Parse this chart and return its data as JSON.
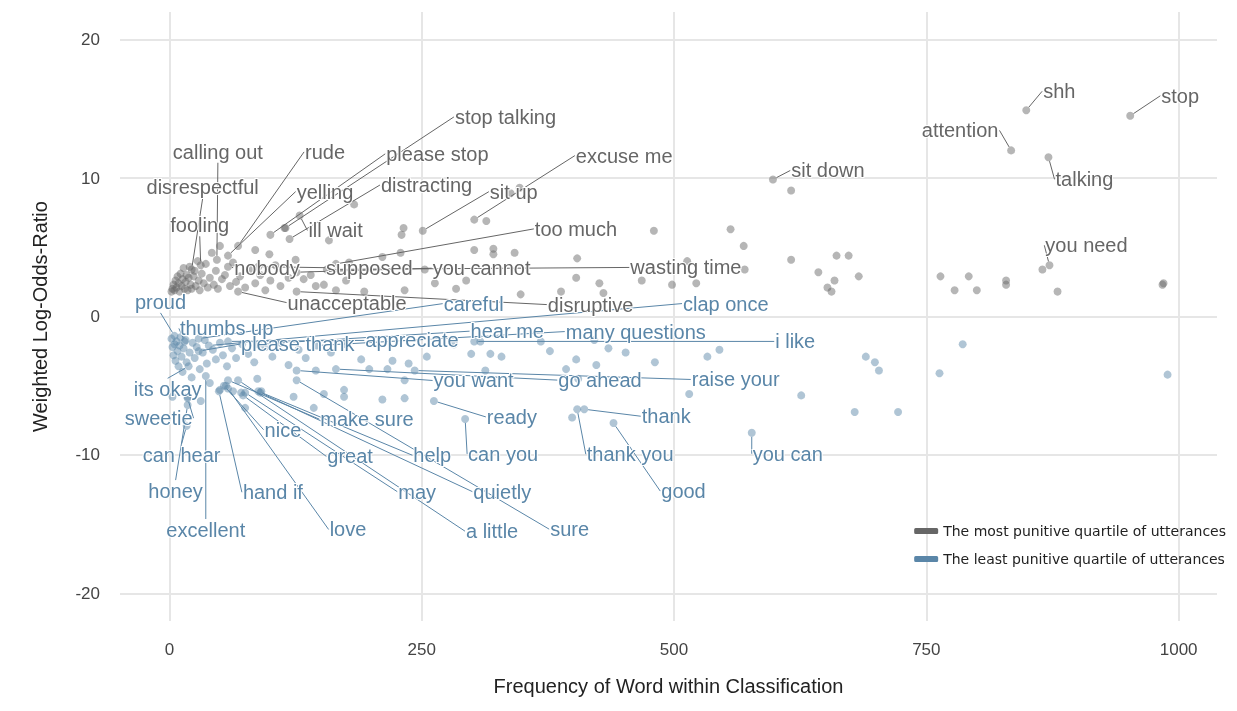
{
  "chart_data": {
    "type": "scatter",
    "xlabel": "Frequency of Word within Classification",
    "ylabel": "Weighted Log-Odds-Ratio",
    "xlim": [
      -49,
      1038
    ],
    "ylim": [
      -22,
      22
    ],
    "xticks": [
      0,
      250,
      500,
      750,
      1000
    ],
    "yticks": [
      -20,
      -10,
      0,
      10,
      20
    ],
    "grid": true,
    "legend": "bottom right",
    "marker": "circle",
    "series": [
      {
        "name": "The most punitive quartile of utterances",
        "color": "#666666",
        "x": [
          952,
          849,
          834,
          871,
          598,
          872,
          47,
          68,
          100,
          115,
          22,
          58,
          119,
          251,
          302,
          31,
          129,
          165,
          58,
          88,
          126,
          156,
          68,
          126,
          616,
          643,
          661,
          673,
          659,
          652,
          656,
          683,
          764,
          778,
          792,
          800,
          829,
          829,
          865,
          880,
          985,
          984,
          616,
          480,
          556,
          569,
          302,
          321,
          342,
          404,
          513,
          570,
          403,
          426,
          468,
          498,
          522,
          388,
          430,
          348,
          294,
          321,
          314,
          338,
          347,
          183,
          232,
          230,
          158,
          114,
          85,
          99,
          229,
          211,
          178,
          133,
          153,
          193,
          233,
          263,
          284,
          253,
          175,
          2,
          3,
          4,
          5,
          6,
          7,
          8,
          9,
          10,
          11,
          12,
          13,
          14,
          15,
          16,
          17,
          18,
          19,
          20,
          21,
          22,
          24,
          25,
          26,
          28,
          29,
          30,
          32,
          34,
          36,
          38,
          40,
          42,
          44,
          46,
          48,
          50,
          52,
          55,
          60,
          63,
          66,
          70,
          75,
          80,
          85,
          90,
          95,
          100,
          105,
          110,
          118,
          125,
          140,
          145,
          165
        ],
        "values": [
          14.5,
          14.9,
          12.0,
          11.5,
          9.9,
          3.7,
          4.1,
          5.1,
          5.9,
          6.4,
          3.4,
          4.4,
          5.6,
          6.2,
          7.0,
          3.7,
          7.3,
          3.8,
          3.6,
          3.6,
          3.2,
          3.4,
          1.8,
          1.8,
          4.1,
          3.2,
          4.4,
          4.4,
          2.6,
          2.1,
          1.8,
          2.9,
          2.9,
          1.9,
          2.9,
          1.9,
          2.6,
          2.3,
          3.4,
          1.8,
          2.4,
          2.3,
          9.1,
          6.2,
          6.3,
          5.1,
          4.8,
          4.9,
          4.6,
          4.2,
          4.0,
          3.4,
          2.8,
          2.4,
          2.6,
          2.3,
          2.4,
          1.8,
          1.7,
          1.6,
          2.6,
          4.5,
          6.9,
          8.9,
          9.3,
          8.1,
          6.4,
          5.9,
          5.5,
          6.4,
          4.8,
          4.5,
          4.6,
          4.3,
          3.9,
          2.7,
          2.3,
          1.8,
          1.9,
          2.4,
          2.0,
          3.4,
          2.6,
          1.8,
          2.0,
          2.3,
          1.9,
          2.6,
          2.1,
          2.9,
          2.4,
          1.8,
          3.1,
          2.2,
          2.7,
          3.5,
          2.0,
          2.5,
          3.0,
          1.9,
          2.8,
          3.6,
          2.3,
          2.0,
          2.9,
          3.3,
          2.2,
          4.0,
          2.6,
          1.9,
          3.1,
          2.4,
          3.8,
          2.1,
          2.8,
          4.6,
          2.3,
          3.3,
          2.0,
          5.1,
          2.7,
          3.0,
          2.2,
          3.9,
          2.5,
          2.9,
          2.1,
          3.4,
          2.4,
          3.0,
          1.9,
          2.6,
          3.7,
          2.2,
          2.8,
          4.1,
          3.0,
          2.2,
          1.9
        ],
        "value_labels": [
          "stop",
          "shh",
          "attention",
          "talking",
          "sit down",
          "you need",
          "calling out",
          "rude",
          "please stop",
          "stop talking",
          "disrespectful",
          "yelling",
          "distracting",
          "sit up",
          "excuse me",
          "fooling",
          "ill wait",
          "too much",
          "nobody",
          "supposed",
          "you cannot",
          "wasting time",
          "unacceptable",
          "disruptive",
          null,
          null,
          null,
          null,
          null,
          null,
          null,
          null,
          null,
          null,
          null,
          null,
          null,
          null,
          null,
          null,
          null,
          null,
          null,
          null,
          null,
          null,
          null,
          null,
          null,
          null,
          null,
          null,
          null,
          null,
          null,
          null,
          null,
          null,
          null,
          null,
          null,
          null,
          null,
          null,
          null,
          null,
          null,
          null,
          null,
          null,
          null,
          null,
          null,
          null,
          null,
          null,
          null,
          null,
          null,
          null,
          null,
          null,
          null,
          null,
          null,
          null,
          null,
          null,
          null,
          null,
          null,
          null,
          null,
          null,
          null,
          null,
          null,
          null,
          null,
          null,
          null,
          null,
          null,
          null,
          null,
          null,
          null,
          null,
          null,
          null,
          null,
          null,
          null,
          null,
          null,
          null,
          null,
          null,
          null,
          null,
          null,
          null,
          null,
          null,
          null,
          null,
          null,
          null,
          null,
          null,
          null,
          null,
          null,
          null,
          null,
          null,
          null,
          null,
          null
        ]
      },
      {
        "name": "The least punitive quartile of utterances",
        "color": "#5a86a8",
        "x": [
          5,
          15,
          29,
          39,
          58,
          29,
          88,
          146,
          302,
          19,
          126,
          165,
          243,
          18,
          54,
          58,
          262,
          411,
          17,
          73,
          88,
          293,
          404,
          577,
          18,
          49,
          75,
          90,
          440,
          36,
          58,
          68,
          126,
          690,
          699,
          703,
          763,
          786,
          989,
          626,
          679,
          722,
          515,
          533,
          481,
          423,
          403,
          393,
          405,
          452,
          435,
          545,
          399,
          377,
          368,
          329,
          318,
          299,
          282,
          255,
          313,
          308,
          421,
          145,
          198,
          216,
          221,
          237,
          233,
          233,
          211,
          173,
          173,
          153,
          143,
          123,
          91,
          75,
          71,
          63,
          50,
          56,
          31,
          18,
          3,
          87,
          2,
          3,
          4,
          5,
          6,
          7,
          8,
          9,
          10,
          11,
          12,
          13,
          14,
          16,
          17,
          20,
          22,
          23,
          25,
          27,
          30,
          33,
          35,
          37,
          40,
          43,
          46,
          50,
          53,
          57,
          62,
          66,
          72,
          78,
          84,
          95,
          102,
          110,
          118,
          128,
          135,
          160,
          175,
          190
        ],
        "values": [
          -1.4,
          -1.8,
          -1.6,
          -2.1,
          -1.8,
          -2.5,
          -2.0,
          -2.1,
          -1.8,
          -3.6,
          -3.9,
          -3.8,
          -3.9,
          -5.9,
          -5.0,
          -4.6,
          -6.1,
          -6.7,
          -7.9,
          -5.7,
          -5.4,
          -7.4,
          -6.7,
          -8.4,
          -6.4,
          -5.4,
          -5.5,
          -5.5,
          -7.7,
          -4.3,
          -5.2,
          -4.6,
          -4.6,
          -2.9,
          -3.3,
          -3.9,
          -4.1,
          -2.0,
          -4.2,
          -5.7,
          -6.9,
          -6.9,
          -5.6,
          -2.9,
          -3.3,
          -3.5,
          -3.1,
          -3.8,
          -4.5,
          -2.6,
          -2.3,
          -2.4,
          -7.3,
          -2.5,
          -1.8,
          -2.9,
          -2.7,
          -2.7,
          -2.0,
          -2.9,
          -3.9,
          -1.8,
          -1.7,
          -3.9,
          -3.8,
          -3.8,
          -3.2,
          -3.4,
          -4.6,
          -5.9,
          -6.0,
          -5.3,
          -5.8,
          -5.6,
          -6.6,
          -5.8,
          -5.4,
          -6.6,
          -5.5,
          -5.4,
          -5.3,
          -5.0,
          -6.1,
          -5.8,
          -5.8,
          -4.5,
          -1.6,
          -2.2,
          -2.8,
          -2.0,
          -3.2,
          -1.8,
          -2.5,
          -3.6,
          -2.1,
          -1.5,
          -2.9,
          -4.0,
          -2.3,
          -1.7,
          -3.3,
          -2.6,
          -4.4,
          -1.9,
          -3.0,
          -2.2,
          -3.8,
          -2.6,
          -1.7,
          -3.4,
          -4.8,
          -2.4,
          -3.1,
          -1.9,
          -2.8,
          -3.6,
          -2.3,
          -3.0,
          -2.0,
          -2.7,
          -3.3,
          -2.2,
          -2.9,
          -1.9,
          -3.5,
          -2.4,
          -3.0,
          -2.6,
          -2.0,
          -3.1
        ],
        "value_labels": [
          "proud",
          "thumbs up",
          "careful",
          "clap once",
          "appreciate",
          "please thank",
          "hear me",
          "many questions",
          "i like",
          "its okay",
          "you want",
          "go ahead",
          "raise your",
          "sweetie",
          "nice",
          "make sure",
          "ready",
          "thank",
          "can hear",
          "great",
          "help",
          "can you",
          "thank you",
          "you can",
          "honey",
          "hand if",
          "may",
          "quietly",
          "good",
          "excellent",
          "love",
          "a little",
          "sure",
          null,
          null,
          null,
          null,
          null,
          null,
          null,
          null,
          null,
          null,
          null,
          null,
          null,
          null,
          null,
          null,
          null,
          null,
          null,
          null,
          null,
          null,
          null,
          null,
          null,
          null,
          null,
          null,
          null,
          null,
          null,
          null,
          null,
          null,
          null,
          null,
          null,
          null,
          null,
          null,
          null,
          null,
          null,
          null,
          null,
          null,
          null,
          null,
          null,
          null,
          null,
          null,
          null,
          null,
          null,
          null,
          null,
          null,
          null,
          null,
          null,
          null,
          null,
          null,
          null,
          null,
          null,
          null,
          null,
          null,
          null,
          null,
          null,
          null,
          null,
          null,
          null,
          null,
          null,
          null,
          null,
          null,
          null,
          null,
          null,
          null,
          null,
          null,
          null,
          null,
          null,
          null,
          null,
          null,
          null,
          null,
          null
        ]
      }
    ]
  }
}
